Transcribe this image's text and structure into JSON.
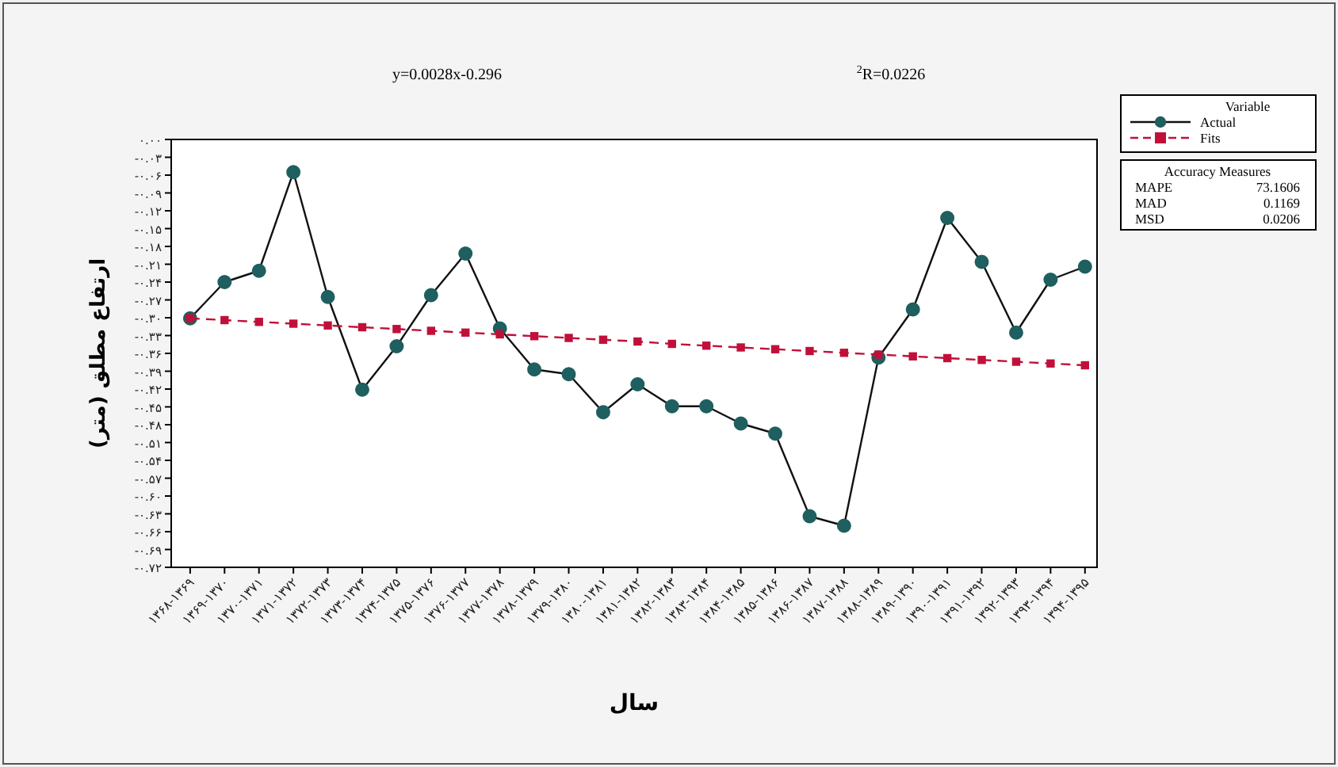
{
  "chart_data": {
    "type": "line",
    "ylabel": "ارتفاع مطلق (متر)",
    "xlabel": "سال",
    "legend_title": "Variable",
    "legend": "right",
    "grid": false,
    "annotations": [
      "y=0.0028x-0.296",
      "$^{2}$R=0.0226",
      "Accuracy Measures",
      "MAPE",
      "73.1606",
      "MAD",
      "0.1169",
      "MSD",
      "0.0206"
    ],
    "categories": [
      "۱۳۶۸-۱۳۶۹",
      "۱۳۶۹-۱۳۷۰",
      "۱۳۷۰-۱۳۷۱",
      "۱۳۷۱-۱۳۷۲",
      "۱۳۷۲-۱۳۷۳",
      "۱۳۷۳-۱۳۷۴",
      "۱۳۷۴-۱۳۷۵",
      "۱۳۷۵-۱۳۷۶",
      "۱۳۷۶-۱۳۷۷",
      "۱۳۷۷-۱۳۷۸",
      "۱۳۷۸-۱۳۷۹",
      "۱۳۷۹-۱۳۸۰",
      "۱۳۸۰-۱۳۸۱",
      "۱۳۸۱-۱۳۸۲",
      "۱۳۸۲-۱۳۸۳",
      "۱۳۸۳-۱۳۸۴",
      "۱۳۸۴-۱۳۸۵",
      "۱۳۸۵-۱۳۸۶",
      "۱۳۸۶-۱۳۸۷",
      "۱۳۸۷-۱۳۸۸",
      "۱۳۸۸-۱۳۸۹",
      "۱۳۸۹-۱۳۹۰",
      "۱۳۹۰-۱۳۹۱",
      "۱۳۹۱-۱۳۹۲",
      "۱۳۹۲-۱۳۹۳",
      "۱۳۹۳-۱۳۹۴",
      "۱۳۹۴-۱۳۹۵"
    ],
    "series": [
      {
        "name": "Actual",
        "color": "#1f5f5f",
        "marker": "circle",
        "line_style": "solid",
        "values": [
          -0.301,
          -0.24,
          -0.221,
          -0.055,
          -0.265,
          -0.421,
          -0.348,
          -0.262,
          -0.192,
          -0.318,
          -0.387,
          -0.395,
          -0.459,
          -0.412,
          -0.449,
          -0.449,
          -0.478,
          -0.495,
          -0.634,
          -0.65,
          -0.367,
          -0.286,
          -0.132,
          -0.206,
          -0.325,
          -0.236,
          -0.214
        ]
      },
      {
        "name": "Fits",
        "color": "#c0103a",
        "marker": "square",
        "line_style": "dashed",
        "values": [
          -0.301,
          -0.304,
          -0.307,
          -0.31,
          -0.313,
          -0.316,
          -0.319,
          -0.322,
          -0.325,
          -0.328,
          -0.331,
          -0.334,
          -0.337,
          -0.34,
          -0.344,
          -0.347,
          -0.35,
          -0.353,
          -0.356,
          -0.359,
          -0.362,
          -0.365,
          -0.368,
          -0.371,
          -0.374,
          -0.377,
          -0.38
        ]
      }
    ],
    "ylim": [
      -0.72,
      0
    ],
    "yticks": [
      {
        "value": 0,
        "label": "۰.۰۰"
      },
      {
        "value": -0.03,
        "label": "-۰.۰۳"
      },
      {
        "value": -0.06,
        "label": "-۰.۰۶"
      },
      {
        "value": -0.09,
        "label": "-۰.۰۹"
      },
      {
        "value": -0.12,
        "label": "-۰.۱۲"
      },
      {
        "value": -0.15,
        "label": "-۰.۱۵"
      },
      {
        "value": -0.18,
        "label": "-۰.۱۸"
      },
      {
        "value": -0.21,
        "label": "-۰.۲۱"
      },
      {
        "value": -0.24,
        "label": "-۰.۲۴"
      },
      {
        "value": -0.27,
        "label": "-۰.۲۷"
      },
      {
        "value": -0.3,
        "label": "-۰.۳۰"
      },
      {
        "value": -0.33,
        "label": "-۰.۳۳"
      },
      {
        "value": -0.36,
        "label": "-۰.۳۶"
      },
      {
        "value": -0.39,
        "label": "-۰.۳۹"
      },
      {
        "value": -0.42,
        "label": "-۰.۴۲"
      },
      {
        "value": -0.45,
        "label": "-۰.۴۵"
      },
      {
        "value": -0.48,
        "label": "-۰.۴۸"
      },
      {
        "value": -0.51,
        "label": "-۰.۵۱"
      },
      {
        "value": -0.54,
        "label": "-۰.۵۴"
      },
      {
        "value": -0.57,
        "label": "-۰.۵۷"
      },
      {
        "value": -0.6,
        "label": "-۰.۶۰"
      },
      {
        "value": -0.63,
        "label": "-۰.۶۳"
      },
      {
        "value": -0.66,
        "label": "-۰.۶۶"
      },
      {
        "value": -0.69,
        "label": "-۰.۶۹"
      },
      {
        "value": -0.72,
        "label": "-۰.۷۲"
      }
    ]
  }
}
